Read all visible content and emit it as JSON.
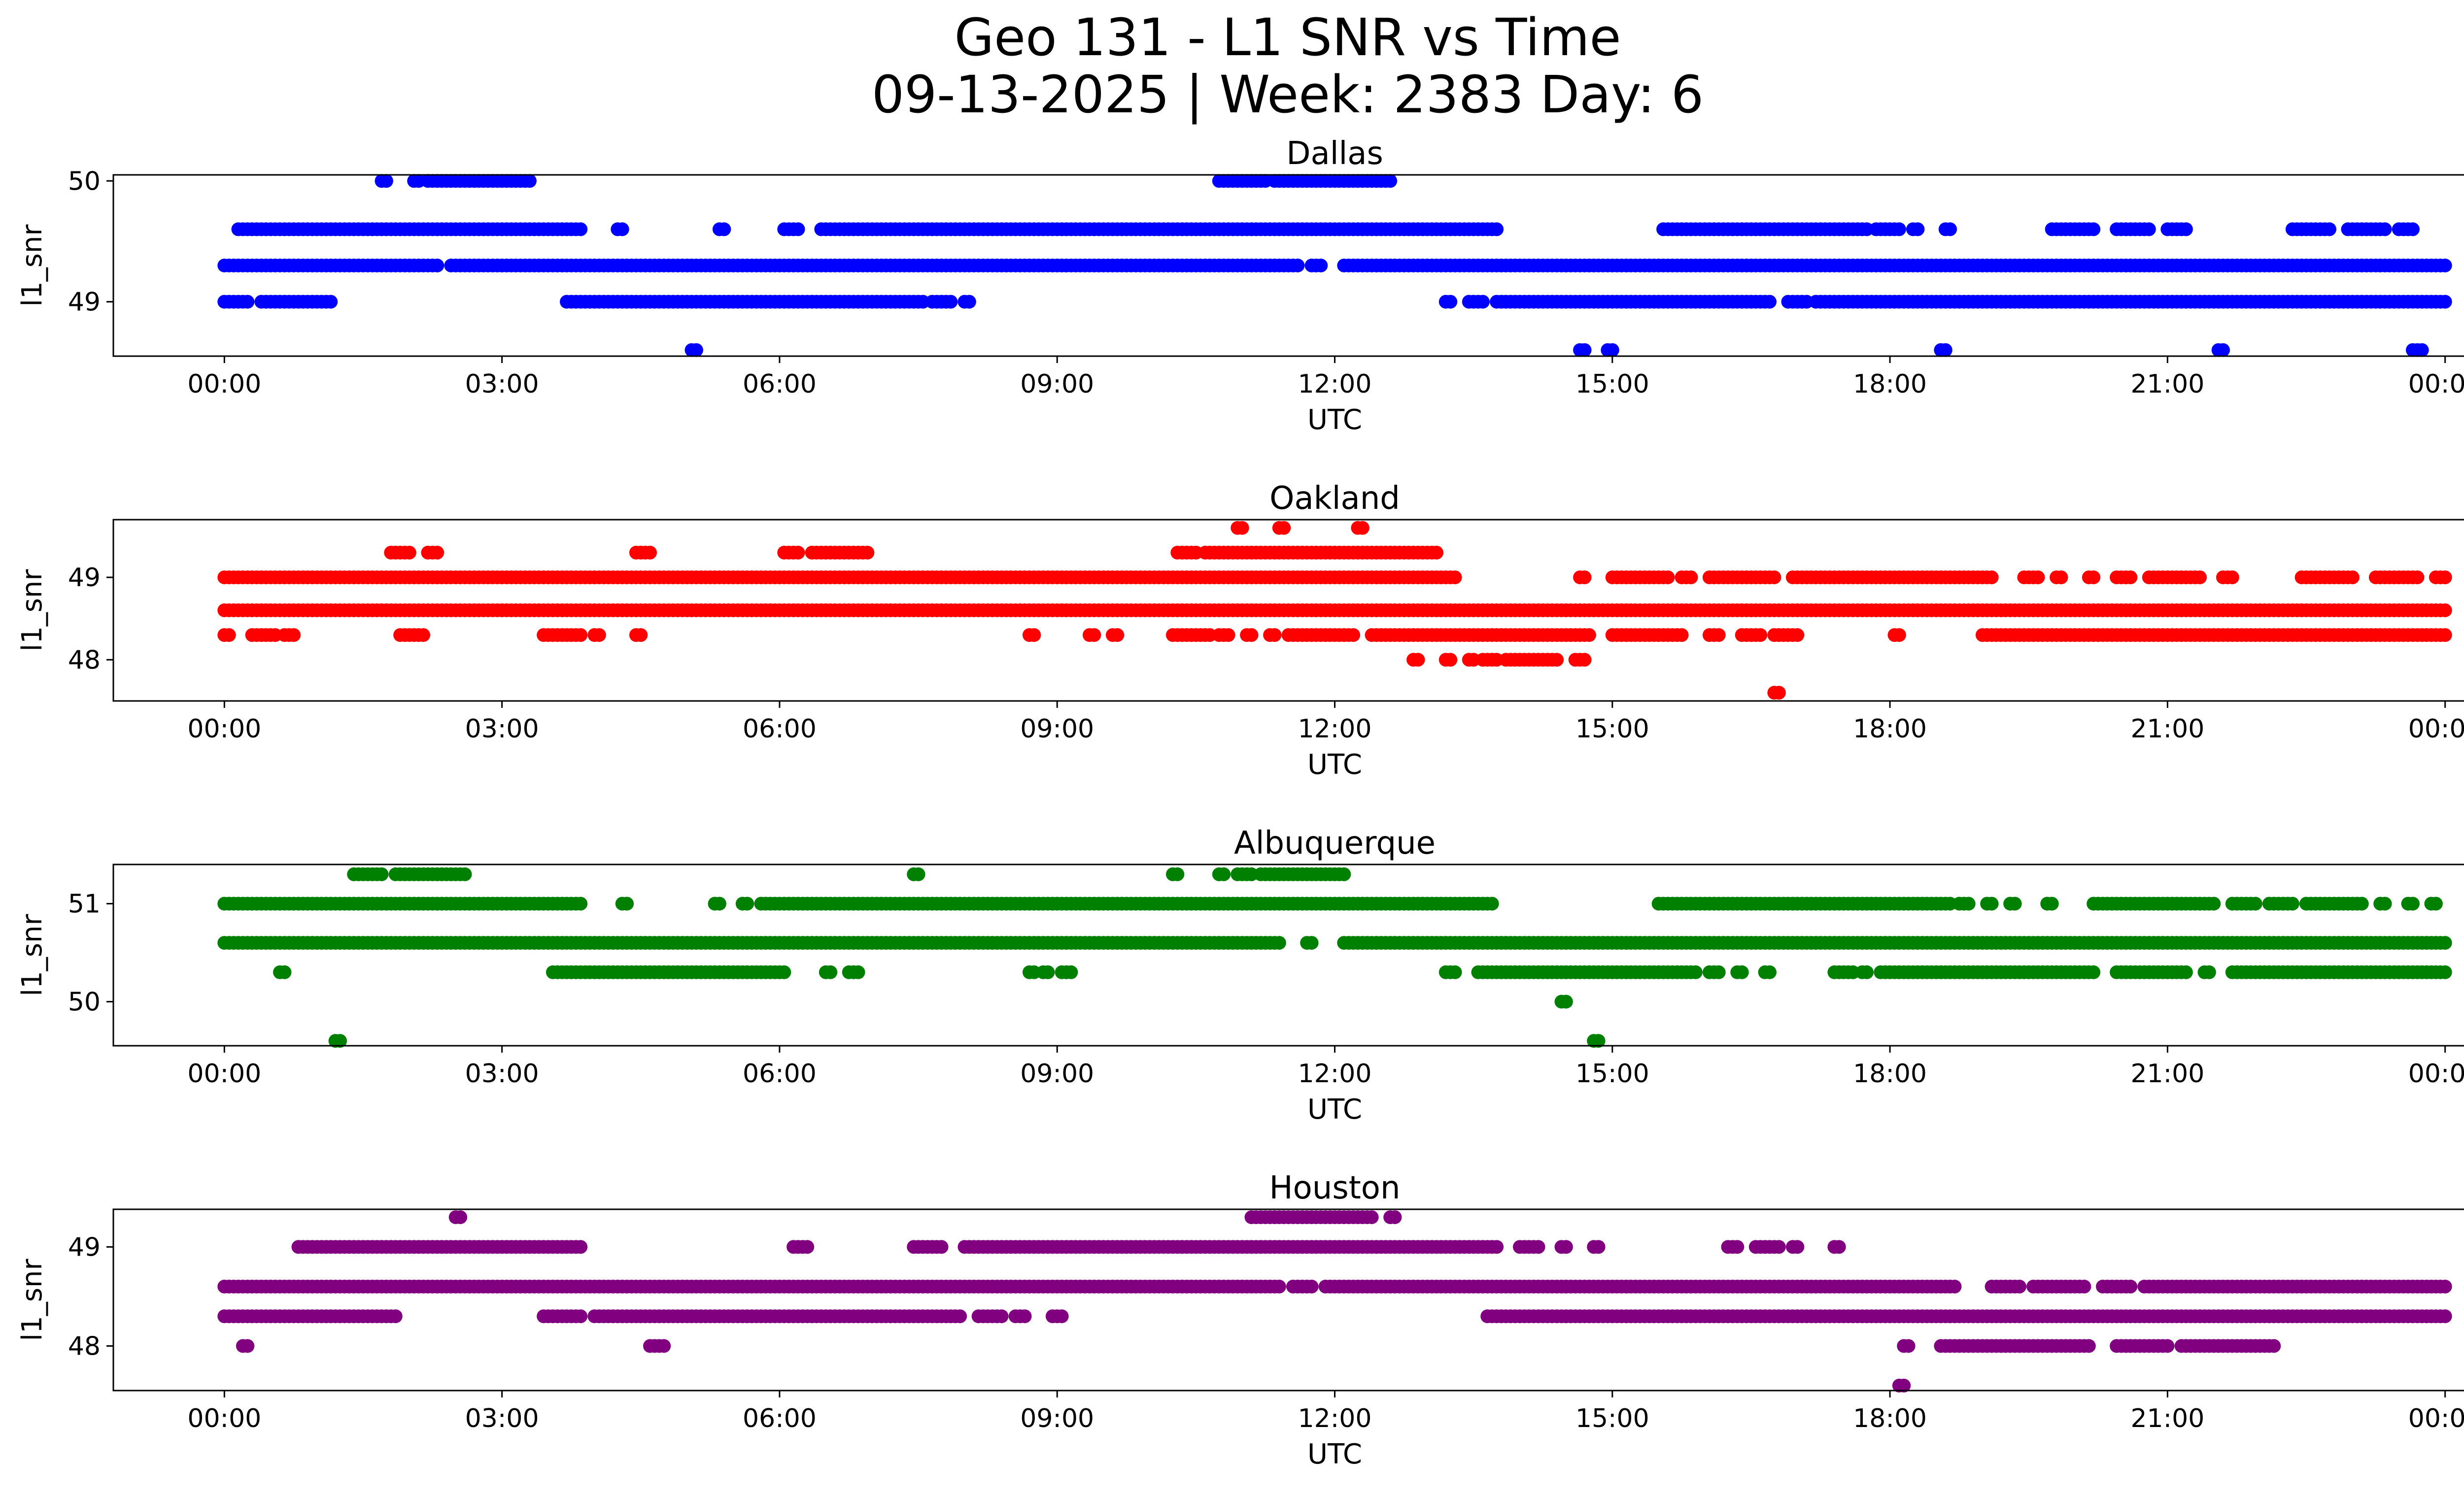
{
  "figure": {
    "title_line1": "Geo 131 - L1 SNR vs Time",
    "title_line2": "09-13-2025 | Week: 2383 Day: 6"
  },
  "chart_data": [
    {
      "type": "scatter",
      "title": "Dallas",
      "xlabel": "UTC",
      "ylabel": "l1_snr",
      "color": "#0000ff",
      "xlim_hours": [
        -1.2,
        25.2
      ],
      "ylim": [
        48.55,
        50.05
      ],
      "xticks": [
        {
          "h": 0,
          "label": "00:00"
        },
        {
          "h": 3,
          "label": "03:00"
        },
        {
          "h": 6,
          "label": "06:00"
        },
        {
          "h": 9,
          "label": "09:00"
        },
        {
          "h": 12,
          "label": "12:00"
        },
        {
          "h": 15,
          "label": "15:00"
        },
        {
          "h": 18,
          "label": "18:00"
        },
        {
          "h": 21,
          "label": "21:00"
        },
        {
          "h": 24,
          "label": "00:00"
        }
      ],
      "yticks": [
        {
          "v": 49,
          "label": "49"
        },
        {
          "v": 50,
          "label": "50"
        }
      ],
      "series": [
        {
          "y": 50.0,
          "segments": [
            [
              1.7,
              1.75
            ],
            [
              2.05,
              2.1
            ],
            [
              2.2,
              3.3
            ],
            [
              10.75,
              11.25
            ],
            [
              11.35,
              12.6
            ]
          ]
        },
        {
          "y": 49.6,
          "segments": [
            [
              0.15,
              3.85
            ],
            [
              4.25,
              4.3
            ],
            [
              5.35,
              5.4
            ],
            [
              6.05,
              6.2
            ],
            [
              6.45,
              13.75
            ],
            [
              15.55,
              17.75
            ],
            [
              17.85,
              18.1
            ],
            [
              18.25,
              18.3
            ],
            [
              18.6,
              18.65
            ],
            [
              19.75,
              20.2
            ],
            [
              20.45,
              20.8
            ],
            [
              21.0,
              21.2
            ],
            [
              22.35,
              22.75
            ],
            [
              22.95,
              23.35
            ],
            [
              23.5,
              23.65
            ]
          ]
        },
        {
          "y": 49.3,
          "segments": [
            [
              0.0,
              2.3
            ],
            [
              2.45,
              11.6
            ],
            [
              11.75,
              11.85
            ],
            [
              12.1,
              24.0
            ]
          ]
        },
        {
          "y": 49.0,
          "segments": [
            [
              0.0,
              0.25
            ],
            [
              0.4,
              1.15
            ],
            [
              3.7,
              7.55
            ],
            [
              7.65,
              7.85
            ],
            [
              8.0,
              8.05
            ],
            [
              13.2,
              13.25
            ],
            [
              13.45,
              13.6
            ],
            [
              13.75,
              16.7
            ],
            [
              16.9,
              17.1
            ],
            [
              17.2,
              24.0
            ]
          ]
        },
        {
          "y": 48.6,
          "segments": [
            [
              5.05,
              5.1
            ],
            [
              14.65,
              14.7
            ],
            [
              14.95,
              15.0
            ],
            [
              18.55,
              18.6
            ],
            [
              21.55,
              21.6
            ],
            [
              23.65,
              23.75
            ]
          ]
        }
      ]
    },
    {
      "type": "scatter",
      "title": "Oakland",
      "xlabel": "UTC",
      "ylabel": "l1_snr",
      "color": "#ff0000",
      "xlim_hours": [
        -1.2,
        25.2
      ],
      "ylim": [
        47.5,
        49.7
      ],
      "xticks": [
        {
          "h": 0,
          "label": "00:00"
        },
        {
          "h": 3,
          "label": "03:00"
        },
        {
          "h": 6,
          "label": "06:00"
        },
        {
          "h": 9,
          "label": "09:00"
        },
        {
          "h": 12,
          "label": "12:00"
        },
        {
          "h": 15,
          "label": "15:00"
        },
        {
          "h": 18,
          "label": "18:00"
        },
        {
          "h": 21,
          "label": "21:00"
        },
        {
          "h": 24,
          "label": "00:00"
        }
      ],
      "yticks": [
        {
          "v": 48,
          "label": "48"
        },
        {
          "v": 49,
          "label": "49"
        }
      ],
      "series": [
        {
          "y": 49.6,
          "segments": [
            [
              10.95,
              11.0
            ],
            [
              11.4,
              11.45
            ],
            [
              12.25,
              12.3
            ]
          ]
        },
        {
          "y": 49.3,
          "segments": [
            [
              1.8,
              2.0
            ],
            [
              2.2,
              2.3
            ],
            [
              4.45,
              4.6
            ],
            [
              6.05,
              6.2
            ],
            [
              6.35,
              6.95
            ],
            [
              10.3,
              10.5
            ],
            [
              10.6,
              13.1
            ]
          ]
        },
        {
          "y": 49.0,
          "segments": [
            [
              0.0,
              13.3
            ],
            [
              14.65,
              14.7
            ],
            [
              15.0,
              15.6
            ],
            [
              15.75,
              15.85
            ],
            [
              16.05,
              16.75
            ],
            [
              16.95,
              19.1
            ],
            [
              19.45,
              19.6
            ],
            [
              19.8,
              19.85
            ],
            [
              20.15,
              20.2
            ],
            [
              20.45,
              20.6
            ],
            [
              20.8,
              21.35
            ],
            [
              21.6,
              21.7
            ],
            [
              22.45,
              23.0
            ],
            [
              23.25,
              23.7
            ],
            [
              23.9,
              24.0
            ]
          ]
        },
        {
          "y": 48.6,
          "segments": [
            [
              0.0,
              24.0
            ]
          ]
        },
        {
          "y": 48.3,
          "segments": [
            [
              0.0,
              0.05
            ],
            [
              0.3,
              0.55
            ],
            [
              0.65,
              0.75
            ],
            [
              1.9,
              2.15
            ],
            [
              3.45,
              3.85
            ],
            [
              4.0,
              4.05
            ],
            [
              4.45,
              4.5
            ],
            [
              8.7,
              8.75
            ],
            [
              9.35,
              9.4
            ],
            [
              9.6,
              9.65
            ],
            [
              10.25,
              10.65
            ],
            [
              10.75,
              10.85
            ],
            [
              11.05,
              11.1
            ],
            [
              11.3,
              11.35
            ],
            [
              11.5,
              12.2
            ],
            [
              12.4,
              14.75
            ],
            [
              15.0,
              15.75
            ],
            [
              16.05,
              16.15
            ],
            [
              16.4,
              16.6
            ],
            [
              16.75,
              17.0
            ],
            [
              18.05,
              18.1
            ],
            [
              19.0,
              24.0
            ]
          ]
        },
        {
          "y": 48.0,
          "segments": [
            [
              12.85,
              12.9
            ],
            [
              13.2,
              13.25
            ],
            [
              13.45,
              13.5
            ],
            [
              13.6,
              13.75
            ],
            [
              13.85,
              14.4
            ],
            [
              14.6,
              14.7
            ]
          ]
        },
        {
          "y": 47.6,
          "segments": [
            [
              16.75,
              16.8
            ]
          ]
        }
      ]
    },
    {
      "type": "scatter",
      "title": "Albuquerque",
      "xlabel": "UTC",
      "ylabel": "l1_snr",
      "color": "#008000",
      "xlim_hours": [
        -1.2,
        25.2
      ],
      "ylim": [
        49.55,
        51.4
      ],
      "xticks": [
        {
          "h": 0,
          "label": "00:00"
        },
        {
          "h": 3,
          "label": "03:00"
        },
        {
          "h": 6,
          "label": "06:00"
        },
        {
          "h": 9,
          "label": "09:00"
        },
        {
          "h": 12,
          "label": "12:00"
        },
        {
          "h": 15,
          "label": "15:00"
        },
        {
          "h": 18,
          "label": "18:00"
        },
        {
          "h": 21,
          "label": "21:00"
        },
        {
          "h": 24,
          "label": "00:00"
        }
      ],
      "yticks": [
        {
          "v": 50,
          "label": "50"
        },
        {
          "v": 51,
          "label": "51"
        }
      ],
      "series": [
        {
          "y": 51.3,
          "segments": [
            [
              1.4,
              1.7
            ],
            [
              1.85,
              2.6
            ],
            [
              7.45,
              7.5
            ],
            [
              10.25,
              10.3
            ],
            [
              10.75,
              10.8
            ],
            [
              10.95,
              11.1
            ],
            [
              11.2,
              12.1
            ]
          ]
        },
        {
          "y": 51.0,
          "segments": [
            [
              0.0,
              3.85
            ],
            [
              4.3,
              4.35
            ],
            [
              5.3,
              5.35
            ],
            [
              5.6,
              5.65
            ],
            [
              5.8,
              13.7
            ],
            [
              15.5,
              18.65
            ],
            [
              18.75,
              18.85
            ],
            [
              19.05,
              19.1
            ],
            [
              19.3,
              19.35
            ],
            [
              19.7,
              19.75
            ],
            [
              20.2,
              21.5
            ],
            [
              21.7,
              21.95
            ],
            [
              22.1,
              22.35
            ],
            [
              22.5,
              23.1
            ],
            [
              23.3,
              23.35
            ],
            [
              23.6,
              23.65
            ],
            [
              23.85,
              23.9
            ]
          ]
        },
        {
          "y": 50.6,
          "segments": [
            [
              0.0,
              11.4
            ],
            [
              11.7,
              11.75
            ],
            [
              12.1,
              24.0
            ]
          ]
        },
        {
          "y": 50.3,
          "segments": [
            [
              0.6,
              0.65
            ],
            [
              3.55,
              6.05
            ],
            [
              6.5,
              6.55
            ],
            [
              6.75,
              6.85
            ],
            [
              8.7,
              8.75
            ],
            [
              8.85,
              8.9
            ],
            [
              9.05,
              9.15
            ],
            [
              13.2,
              13.3
            ],
            [
              13.55,
              15.9
            ],
            [
              16.05,
              16.15
            ],
            [
              16.35,
              16.4
            ],
            [
              16.65,
              16.7
            ],
            [
              17.4,
              17.6
            ],
            [
              17.7,
              17.75
            ],
            [
              17.9,
              20.2
            ],
            [
              20.45,
              21.2
            ],
            [
              21.4,
              21.45
            ],
            [
              21.7,
              24.0
            ]
          ]
        },
        {
          "y": 50.0,
          "segments": [
            [
              14.45,
              14.5
            ]
          ]
        },
        {
          "y": 49.6,
          "segments": [
            [
              1.2,
              1.25
            ],
            [
              14.8,
              14.85
            ]
          ]
        }
      ]
    },
    {
      "type": "scatter",
      "title": "Houston",
      "xlabel": "UTC",
      "ylabel": "l1_snr",
      "color": "#800080",
      "xlim_hours": [
        -1.2,
        25.2
      ],
      "ylim": [
        47.55,
        49.38
      ],
      "xticks": [
        {
          "h": 0,
          "label": "00:00"
        },
        {
          "h": 3,
          "label": "03:00"
        },
        {
          "h": 6,
          "label": "06:00"
        },
        {
          "h": 9,
          "label": "09:00"
        },
        {
          "h": 12,
          "label": "12:00"
        },
        {
          "h": 15,
          "label": "15:00"
        },
        {
          "h": 18,
          "label": "18:00"
        },
        {
          "h": 21,
          "label": "21:00"
        },
        {
          "h": 24,
          "label": "00:00"
        }
      ],
      "yticks": [
        {
          "v": 48,
          "label": "48"
        },
        {
          "v": 49,
          "label": "49"
        }
      ],
      "series": [
        {
          "y": 49.3,
          "segments": [
            [
              2.5,
              2.55
            ],
            [
              11.1,
              12.4
            ],
            [
              12.6,
              12.65
            ]
          ]
        },
        {
          "y": 49.0,
          "segments": [
            [
              0.8,
              3.85
            ],
            [
              6.15,
              6.3
            ],
            [
              7.45,
              7.75
            ],
            [
              8.0,
              13.75
            ],
            [
              14.0,
              14.2
            ],
            [
              14.45,
              14.5
            ],
            [
              14.8,
              14.85
            ],
            [
              16.25,
              16.35
            ],
            [
              16.55,
              16.8
            ],
            [
              16.95,
              17.0
            ],
            [
              17.4,
              17.45
            ]
          ]
        },
        {
          "y": 48.6,
          "segments": [
            [
              0.0,
              11.4
            ],
            [
              11.55,
              11.75
            ],
            [
              11.9,
              18.7
            ],
            [
              19.1,
              19.4
            ],
            [
              19.55,
              20.1
            ],
            [
              20.3,
              20.6
            ],
            [
              20.75,
              24.0
            ]
          ]
        },
        {
          "y": 48.3,
          "segments": [
            [
              0.0,
              1.85
            ],
            [
              3.45,
              3.85
            ],
            [
              4.0,
              7.95
            ],
            [
              8.15,
              8.4
            ],
            [
              8.55,
              8.65
            ],
            [
              8.95,
              9.05
            ],
            [
              13.65,
              24.0
            ]
          ]
        },
        {
          "y": 48.0,
          "segments": [
            [
              0.2,
              0.25
            ],
            [
              4.6,
              4.75
            ],
            [
              18.15,
              18.2
            ],
            [
              18.55,
              20.15
            ],
            [
              20.45,
              21.0
            ],
            [
              21.15,
              22.15
            ]
          ]
        },
        {
          "y": 47.6,
          "segments": [
            [
              18.1,
              18.15
            ]
          ]
        }
      ]
    }
  ]
}
